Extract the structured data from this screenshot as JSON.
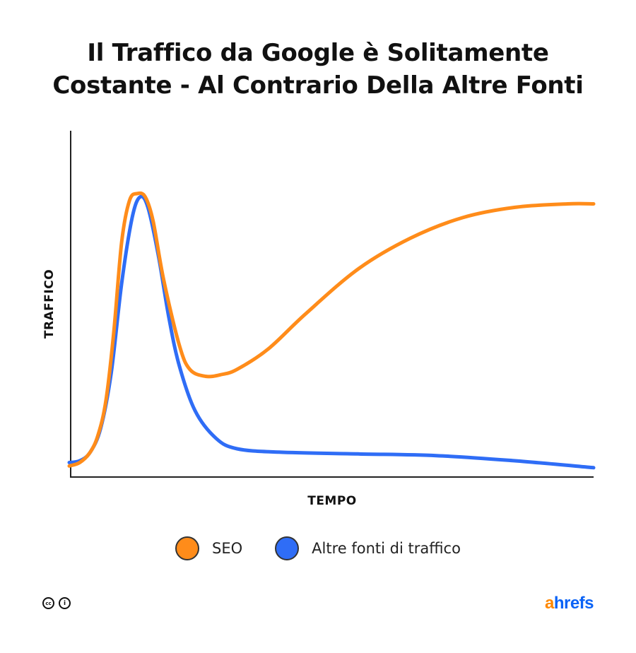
{
  "title_lines": [
    "Il Traffico da Google è Solitamente",
    "Costante - Al Contrario Della Altre Fonti"
  ],
  "chart_data": {
    "type": "line",
    "title": "Il Traffico da Google è Solitamente Costante - Al Contrario Della Altre Fonti",
    "xlabel": "TEMPO",
    "ylabel": "TRAFFICO",
    "xlim": [
      0,
      100
    ],
    "ylim": [
      0,
      100
    ],
    "grid": false,
    "tick_labels": false,
    "legend_position": "bottom-center",
    "series": [
      {
        "name": "SEO",
        "color": "#ff8c1a",
        "points": [
          [
            0,
            3
          ],
          [
            2,
            4
          ],
          [
            4,
            7
          ],
          [
            5.5,
            12
          ],
          [
            7,
            22
          ],
          [
            8.5,
            42
          ],
          [
            10,
            68
          ],
          [
            11.5,
            80
          ],
          [
            13,
            82
          ],
          [
            14.5,
            81
          ],
          [
            16,
            74
          ],
          [
            18,
            57
          ],
          [
            21,
            38
          ],
          [
            23,
            31
          ],
          [
            26,
            29
          ],
          [
            29,
            29.5
          ],
          [
            32,
            31
          ],
          [
            38,
            37
          ],
          [
            45,
            47
          ],
          [
            55,
            60
          ],
          [
            65,
            69
          ],
          [
            75,
            75
          ],
          [
            85,
            78
          ],
          [
            95,
            79
          ],
          [
            100,
            79
          ]
        ]
      },
      {
        "name": "Altre fonti di traffico",
        "color": "#2f6df6",
        "points": [
          [
            0,
            4
          ],
          [
            2,
            4.5
          ],
          [
            4,
            7
          ],
          [
            6,
            14
          ],
          [
            8,
            30
          ],
          [
            10,
            56
          ],
          [
            12,
            75
          ],
          [
            13.5,
            81
          ],
          [
            15,
            78
          ],
          [
            17,
            64
          ],
          [
            19,
            46
          ],
          [
            21,
            32
          ],
          [
            24,
            19
          ],
          [
            28,
            11
          ],
          [
            32,
            8
          ],
          [
            40,
            7
          ],
          [
            55,
            6.5
          ],
          [
            70,
            6
          ],
          [
            85,
            4.5
          ],
          [
            100,
            2.5
          ]
        ]
      }
    ]
  },
  "legend": [
    {
      "label": "SEO",
      "color": "#ff8c1a"
    },
    {
      "label": "Altre fonti di traffico",
      "color": "#2f6df6"
    }
  ],
  "footer": {
    "license_icons": [
      "cc-icon",
      "attribution-icon"
    ],
    "license_glyphs": [
      "cc",
      "i"
    ],
    "brand_a": "a",
    "brand_rest": "hrefs",
    "brand_colors": {
      "a": "#ff8800",
      "rest": "#0b63f6"
    }
  }
}
